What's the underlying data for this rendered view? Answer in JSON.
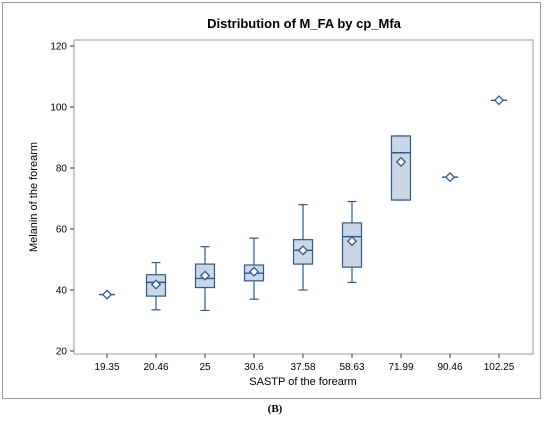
{
  "caption": "(B)",
  "chart_data": {
    "type": "box",
    "title": "Distribution of M_FA by cp_Mfa",
    "xlabel": "SASTP of the forearm",
    "ylabel": "Melanin of the forearm",
    "ylim": [
      20,
      120
    ],
    "yticks": [
      20,
      40,
      60,
      80,
      100,
      120
    ],
    "grid": false,
    "colors": {
      "box_fill": "#c9d6e6",
      "stroke": "#2e5a8e",
      "frame": "#9a9a9a"
    },
    "categories": [
      "19.35",
      "20.46",
      "25",
      "30.6",
      "37.58",
      "58.63",
      "71.99",
      "90.46",
      "102.25"
    ],
    "boxes": [
      {
        "label": "19.35",
        "min": 38.5,
        "q1": 38.5,
        "median": 38.5,
        "q3": 38.5,
        "max": 38.5,
        "mean": 38.5
      },
      {
        "label": "20.46",
        "min": 33.5,
        "q1": 38.0,
        "median": 42.5,
        "q3": 45.0,
        "max": 49.0,
        "mean": 41.8
      },
      {
        "label": "25",
        "min": 33.3,
        "q1": 40.8,
        "median": 43.8,
        "q3": 48.5,
        "max": 54.2,
        "mean": 44.7
      },
      {
        "label": "30.6",
        "min": 37.0,
        "q1": 43.0,
        "median": 45.5,
        "q3": 48.2,
        "max": 57.0,
        "mean": 46.0
      },
      {
        "label": "37.58",
        "min": 40.0,
        "q1": 48.5,
        "median": 53.0,
        "q3": 56.5,
        "max": 68.0,
        "mean": 53.0
      },
      {
        "label": "58.63",
        "min": 42.5,
        "q1": 47.5,
        "median": 57.5,
        "q3": 62.0,
        "max": 69.0,
        "mean": 56.0
      },
      {
        "label": "71.99",
        "min": 69.5,
        "q1": 69.5,
        "median": 85.0,
        "q3": 90.5,
        "max": 90.5,
        "mean": 82.0
      },
      {
        "label": "90.46",
        "min": 77.0,
        "q1": 77.0,
        "median": 77.0,
        "q3": 77.0,
        "max": 77.0,
        "mean": 77.0
      },
      {
        "label": "102.25",
        "min": 102.2,
        "q1": 102.2,
        "median": 102.2,
        "q3": 102.2,
        "max": 102.2,
        "mean": 102.2
      }
    ]
  }
}
